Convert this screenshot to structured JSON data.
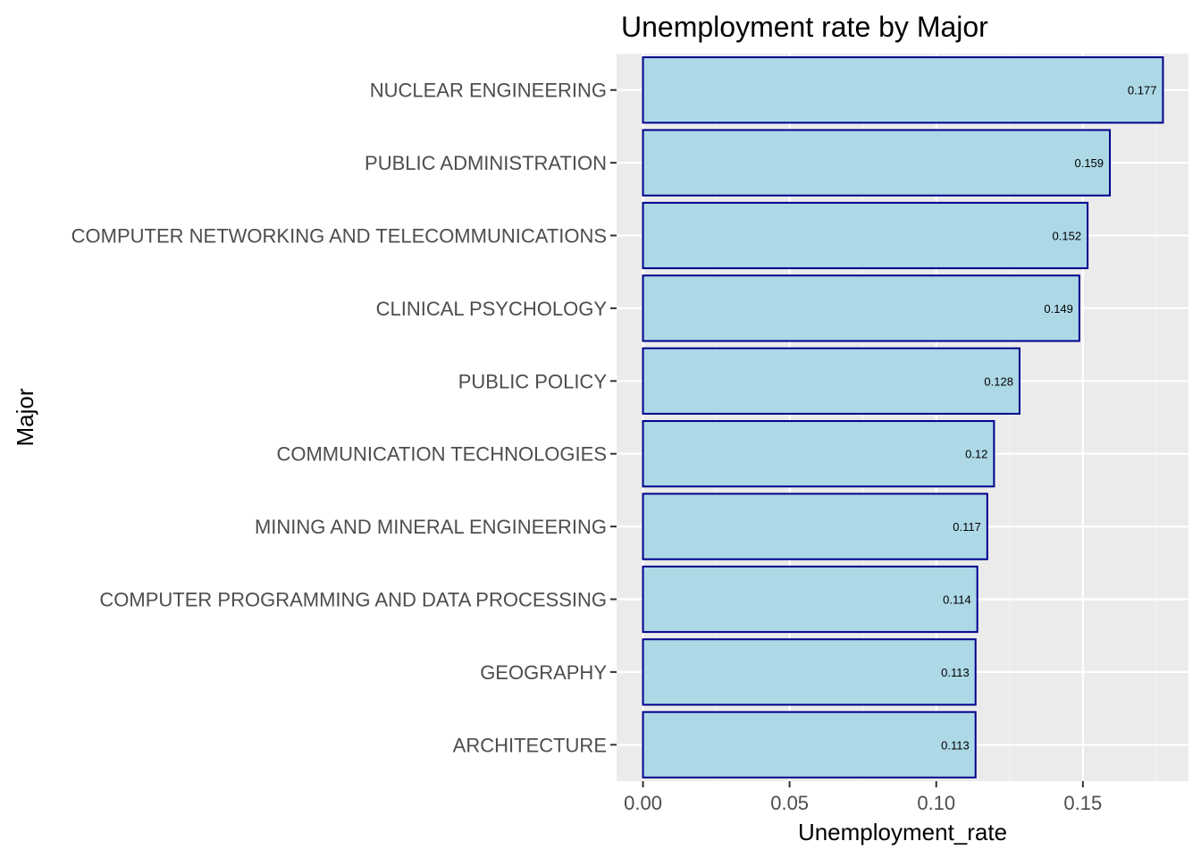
{
  "chart_data": {
    "type": "bar",
    "orientation": "horizontal",
    "title": "Unemployment rate by Major",
    "xlabel": "Unemployment_rate",
    "ylabel": "Major",
    "categories": [
      "NUCLEAR ENGINEERING",
      "PUBLIC ADMINISTRATION",
      "COMPUTER NETWORKING AND TELECOMMUNICATIONS",
      "CLINICAL PSYCHOLOGY",
      "PUBLIC POLICY",
      "COMMUNICATION TECHNOLOGIES",
      "MINING AND MINERAL ENGINEERING",
      "COMPUTER PROGRAMMING AND DATA PROCESSING",
      "GEOGRAPHY",
      "ARCHITECTURE"
    ],
    "values": [
      0.1773,
      0.1592,
      0.1516,
      0.1488,
      0.1284,
      0.1197,
      0.1174,
      0.114,
      0.1134,
      0.1134
    ],
    "value_labels": [
      "0.177",
      "0.159",
      "0.152",
      "0.149",
      "0.128",
      "0.12",
      "0.117",
      "0.114",
      "0.113",
      "0.113"
    ],
    "xlim": [
      -0.009,
      0.186
    ],
    "x_ticks": [
      0.0,
      0.05,
      0.1,
      0.15
    ],
    "x_tick_labels": [
      "0.00",
      "0.05",
      "0.10",
      "0.15"
    ],
    "grid": true,
    "legend": "none",
    "colors": {
      "bar_fill": "#add8e6",
      "bar_stroke": "#00008b",
      "panel_bg": "#ebebeb",
      "grid_major": "#ffffff",
      "grid_minor": "#f5f5f5",
      "tick_text": "#4d4d4d",
      "tick_mark": "#333333"
    }
  }
}
